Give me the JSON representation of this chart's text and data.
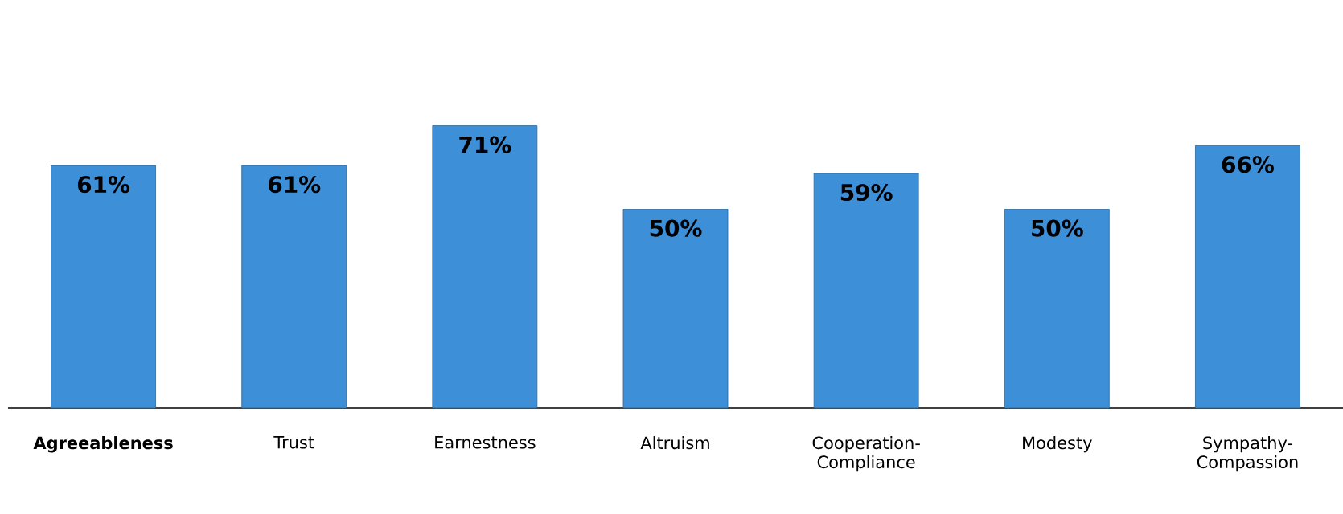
{
  "chart_data": {
    "type": "bar",
    "categories": [
      "**Agreeableness**",
      "Trust",
      "Earnestness",
      "Altruism",
      "Cooperation-Compliance",
      "Modesty",
      "Sympathy-Compassion"
    ],
    "values": [
      61,
      61,
      71,
      50,
      59,
      50,
      66
    ],
    "value_labels": [
      "61%",
      "61%",
      "71%",
      "50%",
      "59%",
      "50%",
      "66%"
    ],
    "color": "#3d8fd8",
    "tick_labels": "x"
  }
}
